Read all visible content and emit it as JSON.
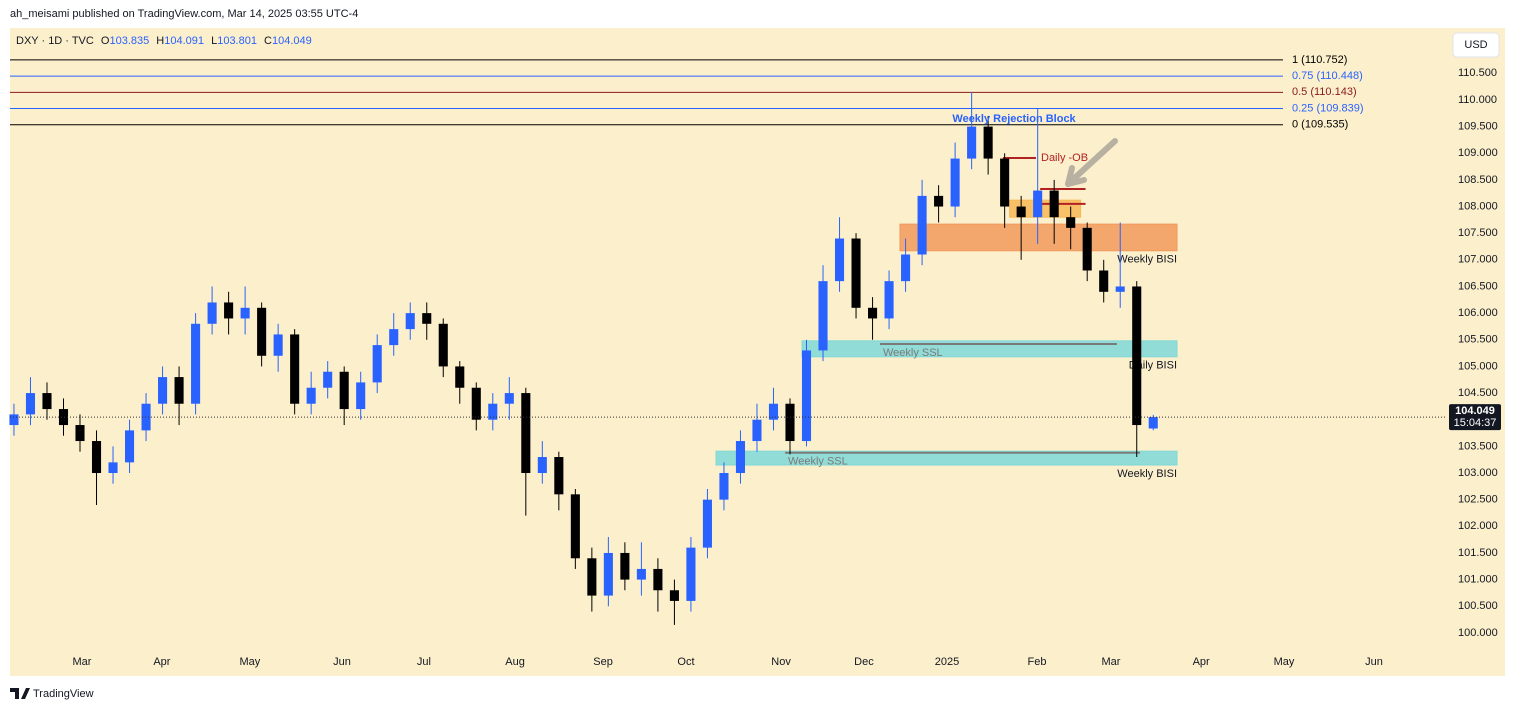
{
  "header": {
    "publisher": "ah_meisami published on TradingView.com, Mar 14, 2025 03:55 UTC-4",
    "footer": "TradingView"
  },
  "chart_data": {
    "type": "candlestick",
    "symbol": "DXY · 1D · TVC",
    "ohlc_labels": [
      "O",
      "H",
      "L",
      "C"
    ],
    "currency": "USD",
    "countdown": "15:04:37",
    "up_color": "#2962ff",
    "down_color": "#000000",
    "x": [
      0,
      1,
      2,
      3,
      4,
      5,
      6,
      7,
      8,
      9,
      10,
      11,
      12,
      13,
      14,
      15,
      16,
      17,
      18,
      19,
      20,
      21,
      22,
      23,
      24,
      25,
      26,
      27,
      28,
      29,
      30,
      31,
      32,
      33,
      34,
      35,
      36,
      37,
      38,
      39,
      40,
      41,
      42,
      43,
      44,
      45,
      46,
      47,
      48,
      49,
      50,
      51,
      52,
      53,
      54,
      55,
      56,
      57,
      58,
      59,
      60,
      61,
      62,
      63,
      64,
      65,
      66,
      67,
      68,
      69
    ],
    "open": [
      103.9,
      104.1,
      104.5,
      104.2,
      103.9,
      103.6,
      103.0,
      103.2,
      103.8,
      104.3,
      104.8,
      104.3,
      105.8,
      106.2,
      105.9,
      106.1,
      105.2,
      105.6,
      104.3,
      104.6,
      104.9,
      104.2,
      104.7,
      105.4,
      105.7,
      106.0,
      105.8,
      105.0,
      104.6,
      104.0,
      104.3,
      104.5,
      103.0,
      103.3,
      102.6,
      101.4,
      100.7,
      101.5,
      101.0,
      101.2,
      100.8,
      100.6,
      101.6,
      102.5,
      103.0,
      103.6,
      104.0,
      104.3,
      103.6,
      105.3,
      106.6,
      107.4,
      106.1,
      105.9,
      106.6,
      107.1,
      108.2,
      108.0,
      108.9,
      109.5,
      108.9,
      108.0,
      107.8,
      108.3,
      107.8,
      107.6,
      106.8,
      106.4,
      106.5,
      103.835
    ],
    "high": [
      104.3,
      104.8,
      104.7,
      104.4,
      104.1,
      103.8,
      103.5,
      104.0,
      104.5,
      105.0,
      105.0,
      106.0,
      106.5,
      106.4,
      106.5,
      106.2,
      105.8,
      105.7,
      104.9,
      105.1,
      105.0,
      104.9,
      105.6,
      106.0,
      106.2,
      106.2,
      105.9,
      105.1,
      104.7,
      104.5,
      104.8,
      104.6,
      103.6,
      103.4,
      102.7,
      101.6,
      101.8,
      101.7,
      101.7,
      101.4,
      101.0,
      101.8,
      102.7,
      103.2,
      103.8,
      104.3,
      104.6,
      104.4,
      105.5,
      106.9,
      107.8,
      107.5,
      106.3,
      106.8,
      107.4,
      108.5,
      108.4,
      109.2,
      110.15,
      109.7,
      109.0,
      108.2,
      109.85,
      108.5,
      108.0,
      107.7,
      107.0,
      107.7,
      106.6,
      104.091
    ],
    "low": [
      103.7,
      103.9,
      104.0,
      103.7,
      103.4,
      102.4,
      102.8,
      103.0,
      103.6,
      104.1,
      103.9,
      104.1,
      105.6,
      105.6,
      105.6,
      105.0,
      104.9,
      104.1,
      104.1,
      104.4,
      103.9,
      104.0,
      104.5,
      105.2,
      105.5,
      105.5,
      104.8,
      104.3,
      103.8,
      103.8,
      104.0,
      102.2,
      102.8,
      102.3,
      101.2,
      100.4,
      100.5,
      100.8,
      100.7,
      100.4,
      100.15,
      100.4,
      101.4,
      102.3,
      102.8,
      103.4,
      103.8,
      103.35,
      103.5,
      105.1,
      106.4,
      105.9,
      105.5,
      105.7,
      106.4,
      106.9,
      107.7,
      107.8,
      108.7,
      108.6,
      107.6,
      107.0,
      107.3,
      107.3,
      107.2,
      106.6,
      106.2,
      106.1,
      103.3,
      103.801
    ],
    "close": [
      104.1,
      104.5,
      104.2,
      103.9,
      103.6,
      103.0,
      103.2,
      103.8,
      104.3,
      104.8,
      104.3,
      105.8,
      106.2,
      105.9,
      106.1,
      105.2,
      105.6,
      104.3,
      104.6,
      104.9,
      104.2,
      104.7,
      105.4,
      105.7,
      106.0,
      105.8,
      105.0,
      104.6,
      104.0,
      104.3,
      104.5,
      103.0,
      103.3,
      102.6,
      101.4,
      100.7,
      101.5,
      101.0,
      101.2,
      100.8,
      100.6,
      101.6,
      102.5,
      103.0,
      103.6,
      104.0,
      104.3,
      103.6,
      105.3,
      106.6,
      107.4,
      106.1,
      105.9,
      106.6,
      107.1,
      108.2,
      108.0,
      108.9,
      109.5,
      108.9,
      108.0,
      107.8,
      108.3,
      107.8,
      107.6,
      106.8,
      106.4,
      106.5,
      103.9,
      104.049
    ],
    "xlim": [
      -0.24,
      86.67
    ],
    "xticks": [
      {
        "value": 4.12,
        "label": "Mar"
      },
      {
        "value": 8.96,
        "label": "Apr"
      },
      {
        "value": 14.29,
        "label": "May"
      },
      {
        "value": 19.87,
        "label": "Jun"
      },
      {
        "value": 24.83,
        "label": "Jul"
      },
      {
        "value": 30.35,
        "label": "Aug"
      },
      {
        "value": 35.68,
        "label": "Sep"
      },
      {
        "value": 40.7,
        "label": "Oct"
      },
      {
        "value": 46.46,
        "label": "Nov"
      },
      {
        "value": 51.48,
        "label": "Dec"
      },
      {
        "value": 56.51,
        "label": "2025"
      },
      {
        "value": 61.96,
        "label": "Feb"
      },
      {
        "value": 66.44,
        "label": "Mar"
      },
      {
        "value": 71.9,
        "label": "Apr"
      },
      {
        "value": 76.92,
        "label": "May"
      },
      {
        "value": 82.37,
        "label": "Jun"
      }
    ],
    "ylim": [
      99.21,
      111.35
    ],
    "yticks": [
      {
        "value": 100,
        "label": "100.000"
      },
      {
        "value": 100.5,
        "label": "100.500"
      },
      {
        "value": 101,
        "label": "101.000"
      },
      {
        "value": 101.5,
        "label": "101.500"
      },
      {
        "value": 102,
        "label": "102.000"
      },
      {
        "value": 102.5,
        "label": "102.500"
      },
      {
        "value": 103,
        "label": "103.000"
      },
      {
        "value": 103.5,
        "label": "103.500"
      },
      {
        "value": 104,
        "label": "104.000"
      },
      {
        "value": 104.5,
        "label": "104.500"
      },
      {
        "value": 105,
        "label": "105.000"
      },
      {
        "value": 105.5,
        "label": "105.500"
      },
      {
        "value": 106,
        "label": "106.000"
      },
      {
        "value": 106.5,
        "label": "106.500"
      },
      {
        "value": 107,
        "label": "107.000"
      },
      {
        "value": 107.5,
        "label": "107.500"
      },
      {
        "value": 108,
        "label": "108.000"
      },
      {
        "value": 108.5,
        "label": "108.500"
      },
      {
        "value": 109,
        "label": "109.000"
      },
      {
        "value": 109.5,
        "label": "109.500"
      },
      {
        "value": 110,
        "label": "110.000"
      },
      {
        "value": 110.5,
        "label": "110.500"
      }
    ],
    "fib_levels": [
      {
        "label": "1 (110.752)",
        "value": 110.752,
        "color": "#000000"
      },
      {
        "label": "0.75 (110.448)",
        "value": 110.448,
        "color": "#2962ff"
      },
      {
        "label": "0.5 (110.143)",
        "value": 110.143,
        "color": "#8b1a1a"
      },
      {
        "label": "0.25 (109.839)",
        "value": 109.839,
        "color": "#2962ff"
      },
      {
        "label": "0 (109.535)",
        "value": 109.535,
        "color": "#000000"
      }
    ],
    "zones": [
      {
        "label": "Weekly BISI",
        "x": [
          53.66,
          70.44
        ],
        "y": [
          107.17,
          107.67
        ],
        "color": "#f29a5c"
      },
      {
        "label": "Daily BISI",
        "x": [
          47.73,
          70.44
        ],
        "y": [
          105.18,
          105.48
        ],
        "color": "#7fd8d8"
      },
      {
        "label": "Weekly BISI",
        "x": [
          42.52,
          70.44
        ],
        "y": [
          103.15,
          103.41
        ],
        "color": "#7fd8d8"
      },
      {
        "x": [
          60.3,
          64.6
        ],
        "y": [
          107.8,
          108.12
        ],
        "color": "#f7b955"
      }
    ],
    "lines": [
      {
        "label": "Weekly SSL",
        "x": [
          52.45,
          66.8
        ],
        "value": 105.42,
        "color": "#7a7a7a",
        "label_position": "below"
      },
      {
        "label": "Weekly SSL",
        "x": [
          46.7,
          68.2
        ],
        "value": 103.38,
        "color": "#7a7a7a",
        "label_position": "below"
      },
      {
        "label": "Daily -OB",
        "x": [
          59.9,
          61.9
        ],
        "value": 108.91,
        "color": "#b22222",
        "label_position": "right"
      },
      {
        "x": [
          62.15,
          64.9
        ],
        "value": 108.33,
        "color": "#b22222"
      },
      {
        "x": [
          62.15,
          64.9
        ],
        "value": 108.05,
        "color": "#b22222"
      }
    ],
    "annotations": [
      {
        "text": "Weekly Rejection Block",
        "x": 60.57,
        "y": 109.64,
        "color": "#2962ff"
      }
    ]
  }
}
